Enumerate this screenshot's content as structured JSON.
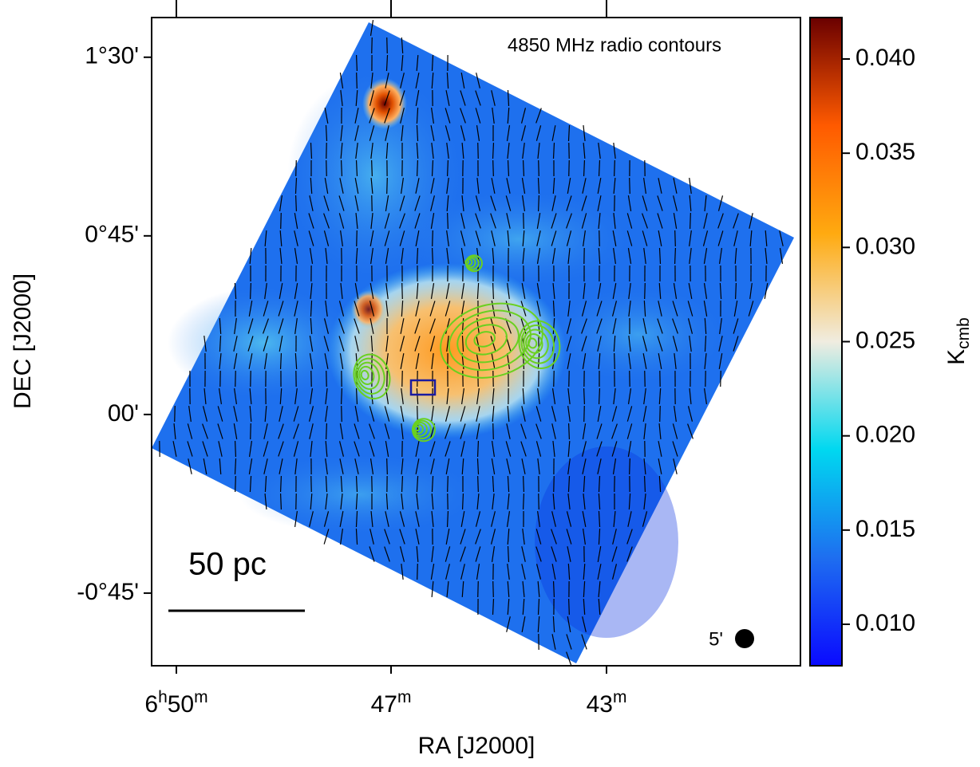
{
  "chart_data": {
    "type": "skymap",
    "annotation": "4850 MHz radio contours",
    "xlabel": "RA [J2000]",
    "ylabel": "DEC [J2000]",
    "xticks": [
      "6h50m",
      "47m",
      "43m"
    ],
    "ylim": [
      -63.3,
      100
    ],
    "yticks": [
      {
        "value": 90,
        "label": "1°30'"
      },
      {
        "value": 45,
        "label": "0°45'"
      },
      {
        "value": 0,
        "label": "00'"
      },
      {
        "value": -45,
        "label": "-0°45'"
      }
    ],
    "colorbar_label": "K",
    "colorbar_label_sub": "cmb",
    "clim": [
      0.0078,
      0.0422
    ],
    "cticks": [
      {
        "value": 0.01,
        "label": "0.010"
      },
      {
        "value": 0.015,
        "label": "0.015"
      },
      {
        "value": 0.02,
        "label": "0.020"
      },
      {
        "value": 0.025,
        "label": "0.025"
      },
      {
        "value": 0.03,
        "label": "0.030"
      },
      {
        "value": 0.035,
        "label": "0.035"
      },
      {
        "value": 0.04,
        "label": "0.040"
      }
    ],
    "colormap": [
      "#0a0aff",
      "#1e6ef0",
      "#00d8f0",
      "#f0ece0",
      "#ffaa10",
      "#ff5a00",
      "#6a0000"
    ],
    "scale_bar_label": "50 pc",
    "beam_label": "5'",
    "contour_color": "#6ad020"
  }
}
